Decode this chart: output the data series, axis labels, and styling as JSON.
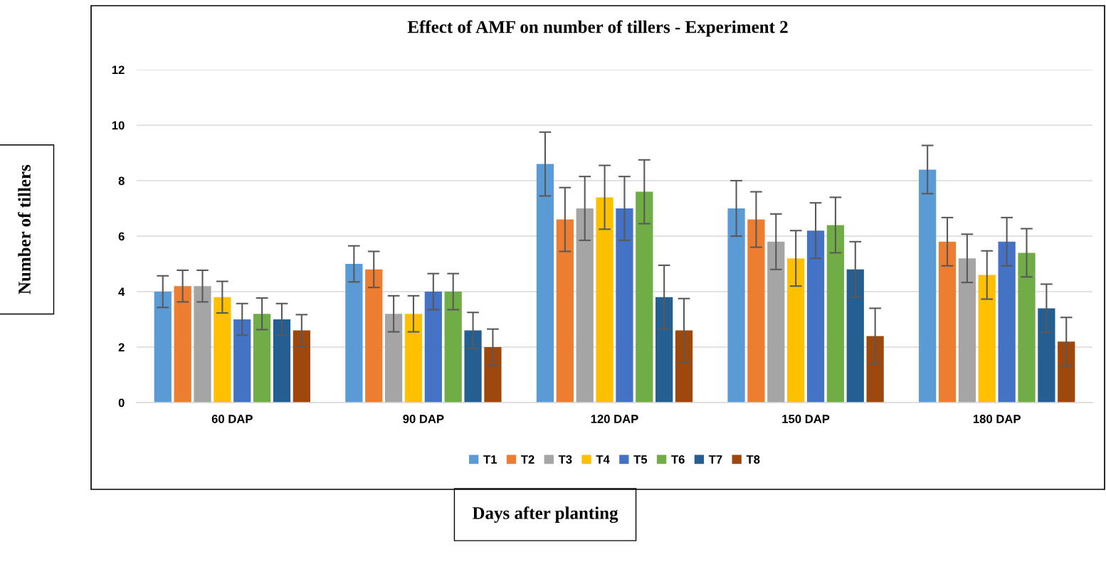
{
  "chart_data": {
    "type": "bar",
    "title": "Effect of AMF on number of tillers - Experiment 2",
    "xlabel": "Days after planting",
    "ylabel": "Number of tillers",
    "categories": [
      "60 DAP",
      "90 DAP",
      "120 DAP",
      "150 DAP",
      "180 DAP"
    ],
    "series": [
      {
        "name": "T1",
        "color": "#5b9bd5",
        "values": [
          4,
          5,
          8.6,
          7,
          8.4
        ],
        "errors": [
          0.57,
          0.65,
          1.15,
          1.0,
          0.87
        ]
      },
      {
        "name": "T2",
        "color": "#ed7d31",
        "values": [
          4.2,
          4.8,
          6.6,
          6.6,
          5.8
        ],
        "errors": [
          0.57,
          0.65,
          1.15,
          1.0,
          0.87
        ]
      },
      {
        "name": "T3",
        "color": "#a5a5a5",
        "values": [
          4.2,
          3.2,
          7,
          5.8,
          5.2
        ],
        "errors": [
          0.57,
          0.65,
          1.15,
          1.0,
          0.87
        ]
      },
      {
        "name": "T4",
        "color": "#ffc000",
        "values": [
          3.8,
          3.2,
          7.4,
          5.2,
          4.6
        ],
        "errors": [
          0.57,
          0.65,
          1.15,
          1.0,
          0.87
        ]
      },
      {
        "name": "T5",
        "color": "#4472c4",
        "values": [
          3,
          4,
          7,
          6.2,
          5.8
        ],
        "errors": [
          0.57,
          0.65,
          1.15,
          1.0,
          0.87
        ]
      },
      {
        "name": "T6",
        "color": "#70ad47",
        "values": [
          3.2,
          4,
          7.6,
          6.4,
          5.4
        ],
        "errors": [
          0.57,
          0.65,
          1.15,
          1.0,
          0.87
        ]
      },
      {
        "name": "T7",
        "color": "#255e91",
        "values": [
          3,
          2.6,
          3.8,
          4.8,
          3.4
        ],
        "errors": [
          0.57,
          0.65,
          1.15,
          1.0,
          0.87
        ]
      },
      {
        "name": "T8",
        "color": "#9e480e",
        "values": [
          2.6,
          2,
          2.6,
          2.4,
          2.2
        ],
        "errors": [
          0.57,
          0.65,
          1.15,
          1.0,
          0.87
        ]
      }
    ],
    "ylim": [
      0,
      12
    ],
    "yticks": [
      0,
      2,
      4,
      6,
      8,
      10,
      12
    ],
    "grid": "y",
    "legend": "bottom"
  }
}
